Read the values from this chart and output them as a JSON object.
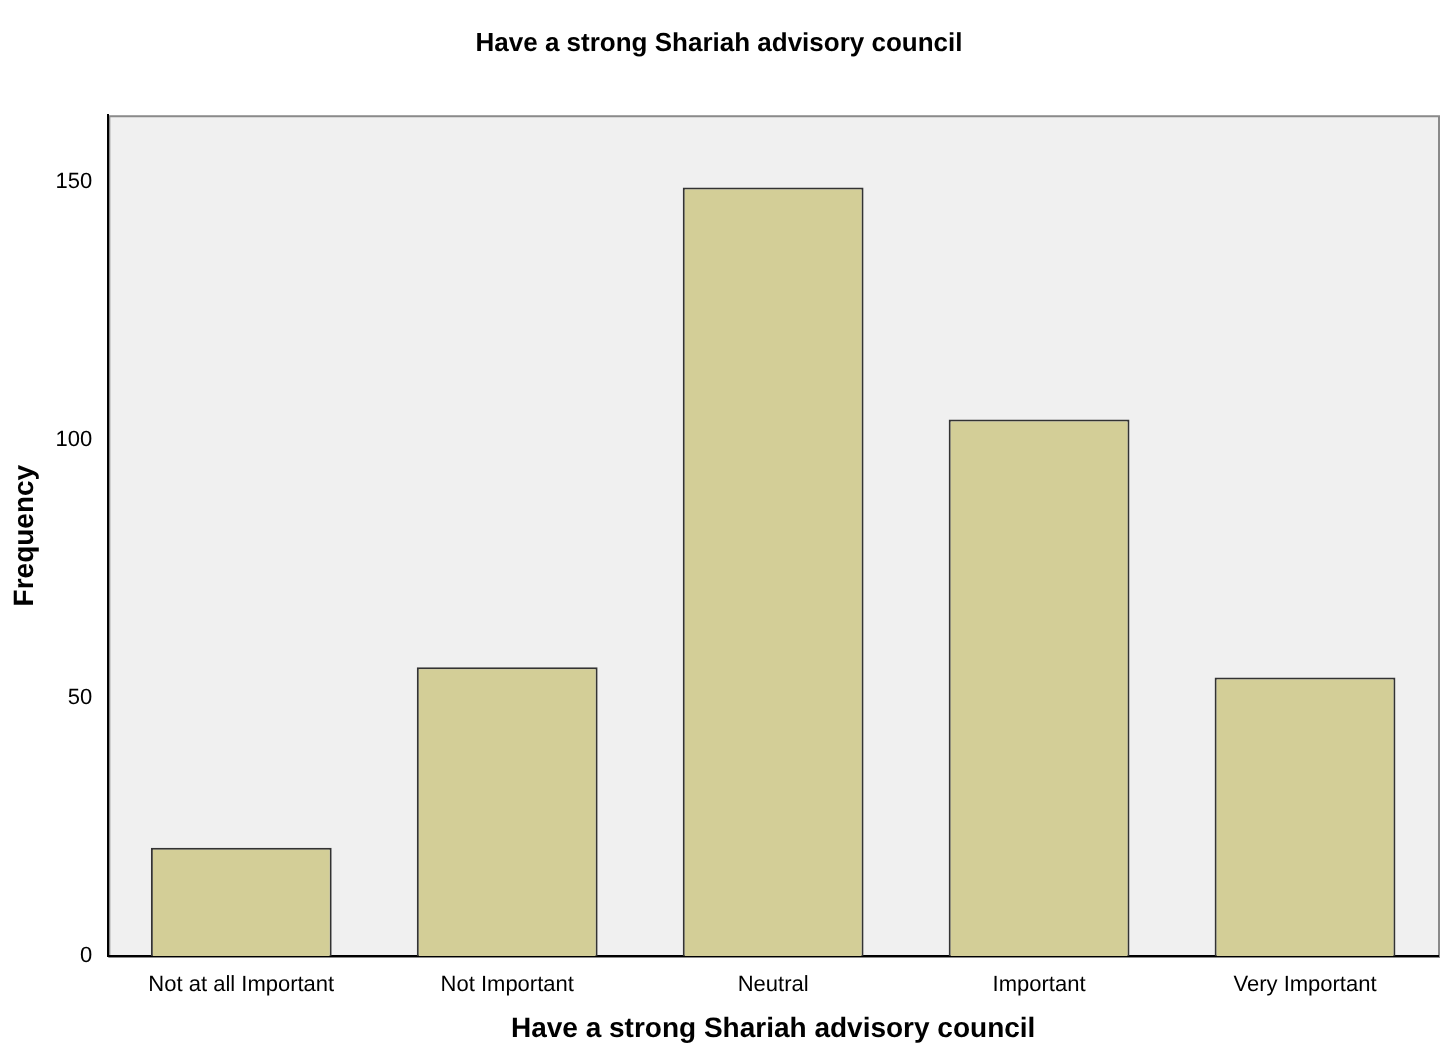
{
  "chart_data": {
    "type": "bar",
    "title": "Have a strong Shariah advisory council",
    "xlabel": "Have a strong Shariah advisory council",
    "ylabel": "Frequency",
    "categories": [
      "Not at all Important",
      "Not Important",
      "Neutral",
      "Important",
      "Very Important"
    ],
    "values": [
      21,
      56,
      149,
      104,
      54
    ],
    "color": "#d3ce97",
    "ylim": [
      0,
      163
    ],
    "yticks": [
      0,
      50,
      100,
      150
    ],
    "grid": false,
    "legend": false
  }
}
